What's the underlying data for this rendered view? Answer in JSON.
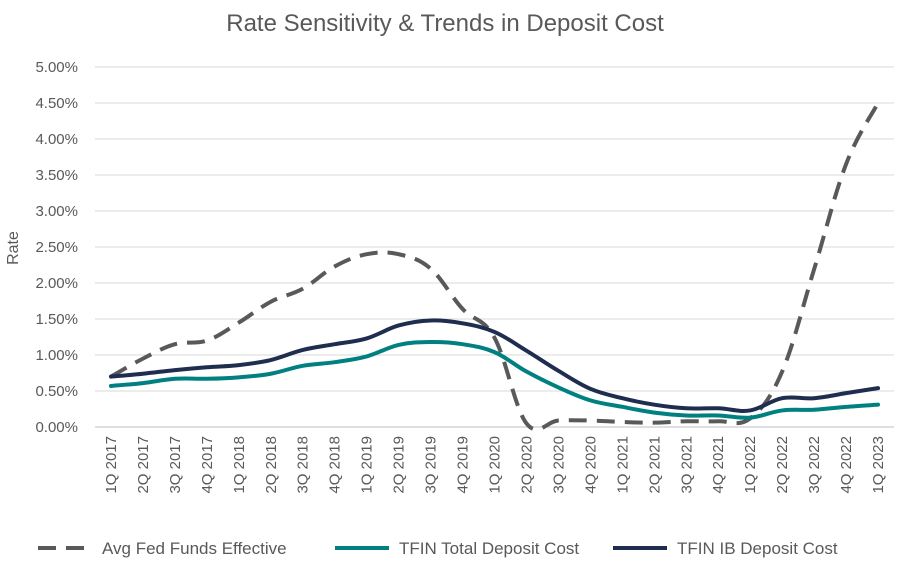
{
  "chart_data": {
    "type": "line",
    "title": "Rate Sensitivity & Trends in Deposit Cost",
    "xlabel": "",
    "ylabel": "Rate",
    "ylim": [
      0,
      5
    ],
    "y_ticks": [
      "0.00%",
      "0.50%",
      "1.00%",
      "1.50%",
      "2.00%",
      "2.50%",
      "3.00%",
      "3.50%",
      "4.00%",
      "4.50%",
      "5.00%"
    ],
    "grid": true,
    "legend_position": "bottom",
    "categories": [
      "1Q 2017",
      "2Q 2017",
      "3Q 2017",
      "4Q 2017",
      "1Q 2018",
      "2Q 2018",
      "3Q 2018",
      "4Q 2018",
      "1Q 2019",
      "2Q 2019",
      "3Q 2019",
      "4Q 2019",
      "1Q 2020",
      "2Q 2020",
      "3Q 2020",
      "4Q 2020",
      "1Q 2021",
      "2Q 2021",
      "3Q 2021",
      "4Q 2021",
      "1Q 2022",
      "2Q 2022",
      "3Q 2022",
      "4Q 2022",
      "1Q 2023"
    ],
    "series": [
      {
        "name": "Avg Fed Funds Effective",
        "color": "#595959",
        "dash": true,
        "values": [
          0.7,
          0.95,
          1.15,
          1.2,
          1.45,
          1.74,
          1.92,
          2.23,
          2.4,
          2.4,
          2.2,
          1.64,
          1.24,
          0.05,
          0.09,
          0.09,
          0.07,
          0.06,
          0.08,
          0.08,
          0.12,
          0.77,
          2.19,
          3.65,
          4.5
        ]
      },
      {
        "name": "TFIN Total Deposit Cost",
        "color": "#008080",
        "dash": false,
        "values": [
          0.57,
          0.61,
          0.67,
          0.67,
          0.69,
          0.74,
          0.85,
          0.9,
          0.98,
          1.14,
          1.18,
          1.15,
          1.04,
          0.77,
          0.55,
          0.37,
          0.28,
          0.2,
          0.16,
          0.16,
          0.13,
          0.23,
          0.24,
          0.28,
          0.31
        ]
      },
      {
        "name": "TFIN IB Deposit Cost",
        "color": "#1f2d4e",
        "dash": false,
        "values": [
          0.7,
          0.74,
          0.79,
          0.83,
          0.86,
          0.93,
          1.07,
          1.15,
          1.23,
          1.41,
          1.48,
          1.44,
          1.32,
          1.06,
          0.78,
          0.53,
          0.4,
          0.31,
          0.26,
          0.26,
          0.23,
          0.4,
          0.4,
          0.47,
          0.54
        ]
      }
    ]
  }
}
